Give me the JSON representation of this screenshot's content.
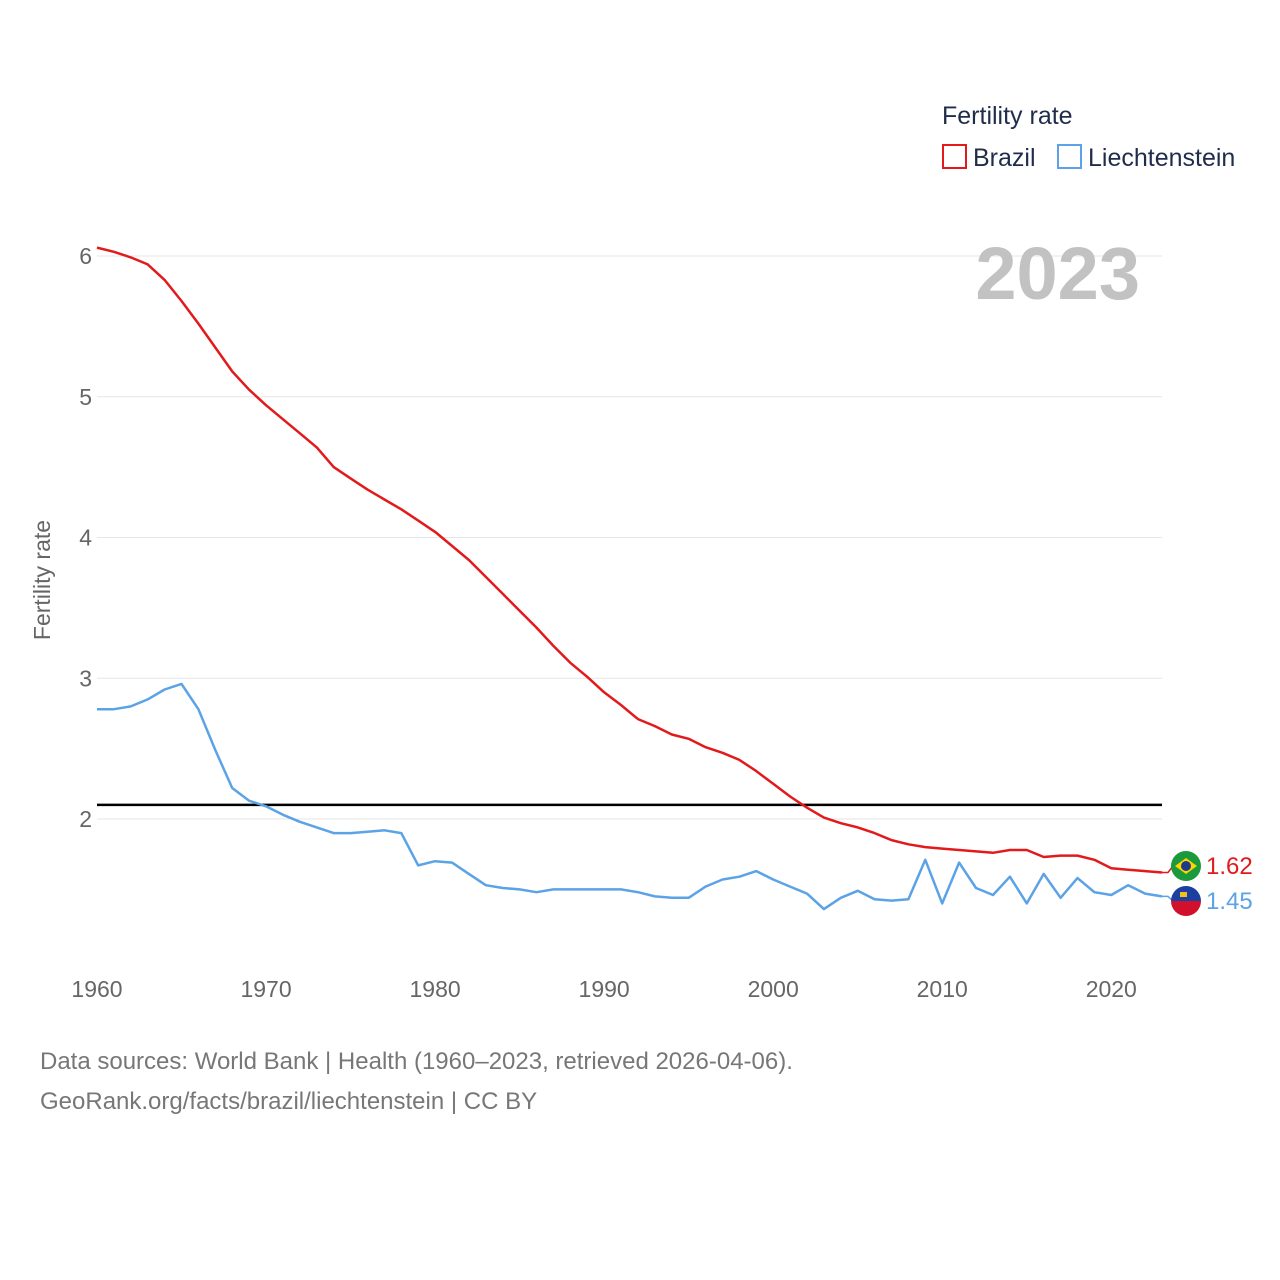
{
  "chart_data": {
    "type": "line",
    "title": "",
    "year_overlay": "2023",
    "ylabel": "Fertility rate",
    "xlabel": "",
    "xlim": [
      1960,
      2023
    ],
    "ylim": [
      1.0,
      6.1
    ],
    "x_ticks": [
      1960,
      1970,
      1980,
      1990,
      2000,
      2010,
      2020
    ],
    "y_ticks": [
      2,
      3,
      4,
      5,
      6
    ],
    "legend": {
      "title": "Fertility rate",
      "position": "top-right"
    },
    "reference_line": {
      "y": 2.1,
      "color": "#000000"
    },
    "x": [
      1960,
      1961,
      1962,
      1963,
      1964,
      1965,
      1966,
      1967,
      1968,
      1969,
      1970,
      1971,
      1972,
      1973,
      1974,
      1975,
      1976,
      1977,
      1978,
      1979,
      1980,
      1981,
      1982,
      1983,
      1984,
      1985,
      1986,
      1987,
      1988,
      1989,
      1990,
      1991,
      1992,
      1993,
      1994,
      1995,
      1996,
      1997,
      1998,
      1999,
      2000,
      2001,
      2002,
      2003,
      2004,
      2005,
      2006,
      2007,
      2008,
      2009,
      2010,
      2011,
      2012,
      2013,
      2014,
      2015,
      2016,
      2017,
      2018,
      2019,
      2020,
      2021,
      2022,
      2023
    ],
    "series": [
      {
        "name": "Brazil",
        "color": "#e31a1c",
        "end_label": "1.62",
        "values": [
          6.06,
          6.03,
          5.99,
          5.94,
          5.83,
          5.68,
          5.52,
          5.35,
          5.18,
          5.05,
          4.94,
          4.84,
          4.74,
          4.64,
          4.5,
          4.42,
          4.34,
          4.27,
          4.2,
          4.12,
          4.04,
          3.94,
          3.84,
          3.72,
          3.6,
          3.48,
          3.36,
          3.23,
          3.11,
          3.01,
          2.9,
          2.81,
          2.71,
          2.66,
          2.6,
          2.57,
          2.51,
          2.47,
          2.42,
          2.34,
          2.25,
          2.16,
          2.08,
          2.01,
          1.97,
          1.94,
          1.9,
          1.85,
          1.82,
          1.8,
          1.79,
          1.78,
          1.77,
          1.76,
          1.78,
          1.78,
          1.73,
          1.74,
          1.74,
          1.71,
          1.65,
          1.64,
          1.63,
          1.62
        ]
      },
      {
        "name": "Liechtenstein",
        "color": "#5ba3e6",
        "end_label": "1.45",
        "values": [
          2.78,
          2.78,
          2.8,
          2.85,
          2.92,
          2.96,
          2.78,
          2.49,
          2.22,
          2.13,
          2.09,
          2.03,
          1.98,
          1.94,
          1.9,
          1.9,
          1.91,
          1.92,
          1.9,
          1.67,
          1.7,
          1.69,
          1.61,
          1.53,
          1.51,
          1.5,
          1.48,
          1.5,
          1.5,
          1.5,
          1.5,
          1.5,
          1.48,
          1.45,
          1.44,
          1.44,
          1.52,
          1.57,
          1.59,
          1.63,
          1.57,
          1.52,
          1.47,
          1.36,
          1.44,
          1.49,
          1.43,
          1.42,
          1.43,
          1.71,
          1.4,
          1.69,
          1.51,
          1.46,
          1.59,
          1.4,
          1.61,
          1.44,
          1.58,
          1.48,
          1.46,
          1.53,
          1.47,
          1.45
        ]
      }
    ]
  },
  "footer": {
    "line1": "Data sources: World Bank | Health (1960–2023, retrieved 2026-04-06).",
    "line2": "GeoRank.org/facts/brazil/liechtenstein | CC BY"
  }
}
